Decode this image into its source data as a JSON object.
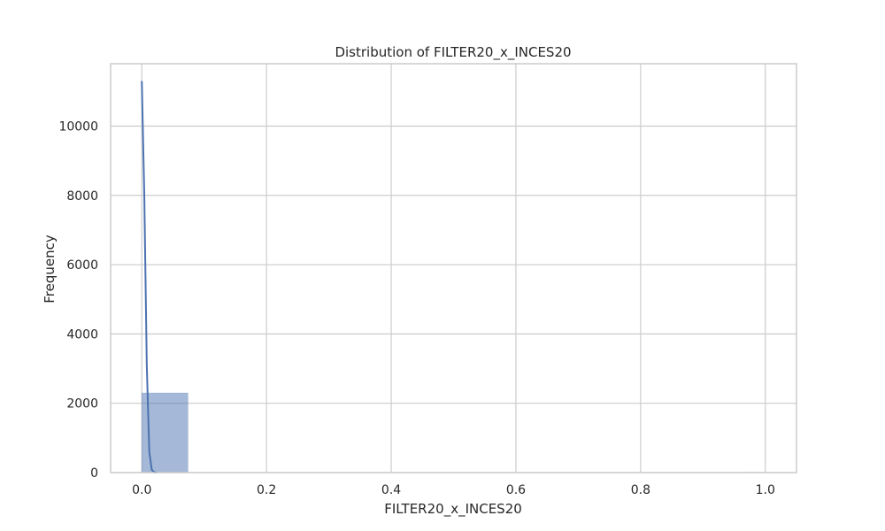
{
  "chart_data": {
    "type": "bar",
    "title": "Distribution of FILTER20_x_INCES20",
    "xlabel": "FILTER20_x_INCES20",
    "ylabel": "Frequency",
    "xlim": [
      -0.05,
      1.05
    ],
    "ylim": [
      0,
      11800
    ],
    "xticks": [
      0.0,
      0.2,
      0.4,
      0.6,
      0.8,
      1.0
    ],
    "xtick_labels": [
      "0.0",
      "0.2",
      "0.4",
      "0.6",
      "0.8",
      "1.0"
    ],
    "yticks": [
      0,
      2000,
      4000,
      6000,
      8000,
      10000
    ],
    "ytick_labels": [
      "0",
      "2000",
      "4000",
      "6000",
      "8000",
      "10000"
    ],
    "grid": true,
    "histogram": {
      "bin_edges": [
        0.0,
        0.0741,
        0.1481,
        0.2222,
        0.2963,
        0.3704,
        0.4444,
        0.5185,
        0.5926,
        0.6667,
        0.7407,
        0.8148,
        0.8889,
        0.963,
        1.0
      ],
      "counts": [
        2300,
        0,
        0,
        0,
        0,
        0,
        0,
        0,
        0,
        0,
        0,
        0,
        0,
        10
      ]
    },
    "kde": {
      "x": [
        0.0,
        0.004,
        0.008,
        0.012,
        0.016,
        0.02,
        0.024
      ],
      "y": [
        11300,
        8000,
        3100,
        600,
        80,
        10,
        0
      ]
    },
    "colors": {
      "bar_fill": "#4c72b0",
      "bar_alpha": 0.5,
      "kde_line": "#4c72b0",
      "grid": "#cccccc",
      "spine": "#cccccc"
    }
  }
}
